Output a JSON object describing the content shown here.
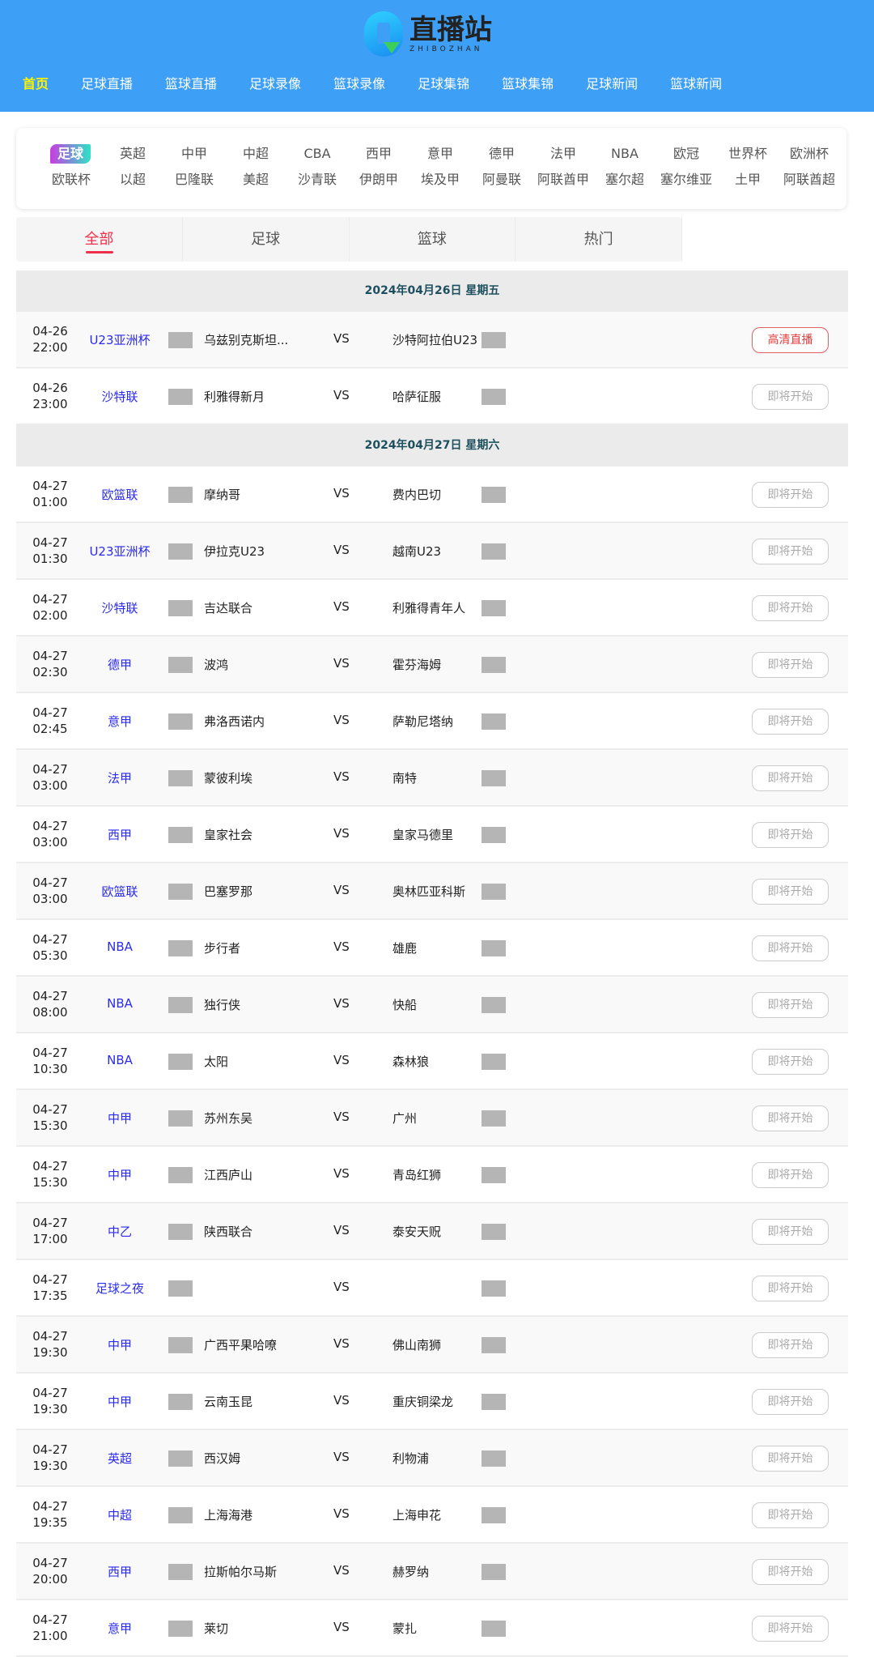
{
  "logo": {
    "cn": "直播站",
    "en": "ZHIBOZHAN"
  },
  "nav": [
    "首页",
    "足球直播",
    "篮球直播",
    "足球录像",
    "篮球录像",
    "足球集锦",
    "篮球集锦",
    "足球新闻",
    "篮球新闻"
  ],
  "categories": [
    [
      "足球",
      "英超",
      "中甲",
      "中超",
      "CBA",
      "西甲",
      "意甲",
      "德甲",
      "法甲",
      "NBA",
      "欧冠",
      "世界杯",
      "欧洲杯"
    ],
    [
      "欧联杯",
      "以超",
      "巴隆联",
      "美超",
      "沙青联",
      "伊朗甲",
      "埃及甲",
      "阿曼联",
      "阿联酋甲",
      "塞尔超",
      "塞尔维亚",
      "土甲",
      "阿联酋超"
    ]
  ],
  "tabs": [
    "全部",
    "足球",
    "篮球",
    "热门"
  ],
  "colors": {
    "header": "#3d9ff5",
    "active_nav": "#fff200",
    "league": "#2b2bef",
    "active_tab": "#f0304a"
  },
  "days": [
    {
      "date": "2024年04月26日 星期五",
      "matches": [
        {
          "date": "04-26",
          "time": "22:00",
          "league": "U23亚洲杯",
          "home": "乌兹别克斯坦...",
          "away": "沙特阿拉伯U23",
          "status": "高清直播"
        },
        {
          "date": "04-26",
          "time": "23:00",
          "league": "沙特联",
          "home": "利雅得新月",
          "away": "哈萨征服",
          "status": "即将开始"
        }
      ]
    },
    {
      "date": "2024年04月27日 星期六",
      "matches": [
        {
          "date": "04-27",
          "time": "01:00",
          "league": "欧篮联",
          "home": "摩纳哥",
          "away": "费内巴切",
          "status": "即将开始"
        },
        {
          "date": "04-27",
          "time": "01:30",
          "league": "U23亚洲杯",
          "home": "伊拉克U23",
          "away": "越南U23",
          "status": "即将开始"
        },
        {
          "date": "04-27",
          "time": "02:00",
          "league": "沙特联",
          "home": "吉达联合",
          "away": "利雅得青年人",
          "status": "即将开始"
        },
        {
          "date": "04-27",
          "time": "02:30",
          "league": "德甲",
          "home": "波鸿",
          "away": "霍芬海姆",
          "status": "即将开始"
        },
        {
          "date": "04-27",
          "time": "02:45",
          "league": "意甲",
          "home": "弗洛西诺内",
          "away": "萨勒尼塔纳",
          "status": "即将开始"
        },
        {
          "date": "04-27",
          "time": "03:00",
          "league": "法甲",
          "home": "蒙彼利埃",
          "away": "南特",
          "status": "即将开始"
        },
        {
          "date": "04-27",
          "time": "03:00",
          "league": "西甲",
          "home": "皇家社会",
          "away": "皇家马德里",
          "status": "即将开始"
        },
        {
          "date": "04-27",
          "time": "03:00",
          "league": "欧篮联",
          "home": "巴塞罗那",
          "away": "奥林匹亚科斯",
          "status": "即将开始"
        },
        {
          "date": "04-27",
          "time": "05:30",
          "league": "NBA",
          "home": "步行者",
          "away": "雄鹿",
          "status": "即将开始"
        },
        {
          "date": "04-27",
          "time": "08:00",
          "league": "NBA",
          "home": "独行侠",
          "away": "快船",
          "status": "即将开始"
        },
        {
          "date": "04-27",
          "time": "10:30",
          "league": "NBA",
          "home": "太阳",
          "away": "森林狼",
          "status": "即将开始"
        },
        {
          "date": "04-27",
          "time": "15:30",
          "league": "中甲",
          "home": "苏州东吴",
          "away": "广州",
          "status": "即将开始"
        },
        {
          "date": "04-27",
          "time": "15:30",
          "league": "中甲",
          "home": "江西庐山",
          "away": "青岛红狮",
          "status": "即将开始"
        },
        {
          "date": "04-27",
          "time": "17:00",
          "league": "中乙",
          "home": "陕西联合",
          "away": "泰安天贶",
          "status": "即将开始"
        },
        {
          "date": "04-27",
          "time": "17:35",
          "league": "足球之夜",
          "home": "",
          "away": "",
          "status": "即将开始"
        },
        {
          "date": "04-27",
          "time": "19:30",
          "league": "中甲",
          "home": "广西平果哈嘹",
          "away": "佛山南狮",
          "status": "即将开始"
        },
        {
          "date": "04-27",
          "time": "19:30",
          "league": "中甲",
          "home": "云南玉昆",
          "away": "重庆铜梁龙",
          "status": "即将开始"
        },
        {
          "date": "04-27",
          "time": "19:30",
          "league": "英超",
          "home": "西汉姆",
          "away": "利物浦",
          "status": "即将开始"
        },
        {
          "date": "04-27",
          "time": "19:35",
          "league": "中超",
          "home": "上海海港",
          "away": "上海申花",
          "status": "即将开始"
        },
        {
          "date": "04-27",
          "time": "20:00",
          "league": "西甲",
          "home": "拉斯帕尔马斯",
          "away": "赫罗纳",
          "status": "即将开始"
        },
        {
          "date": "04-27",
          "time": "21:00",
          "league": "意甲",
          "home": "莱切",
          "away": "蒙扎",
          "status": "即将开始"
        }
      ]
    }
  ],
  "vs": "VS"
}
